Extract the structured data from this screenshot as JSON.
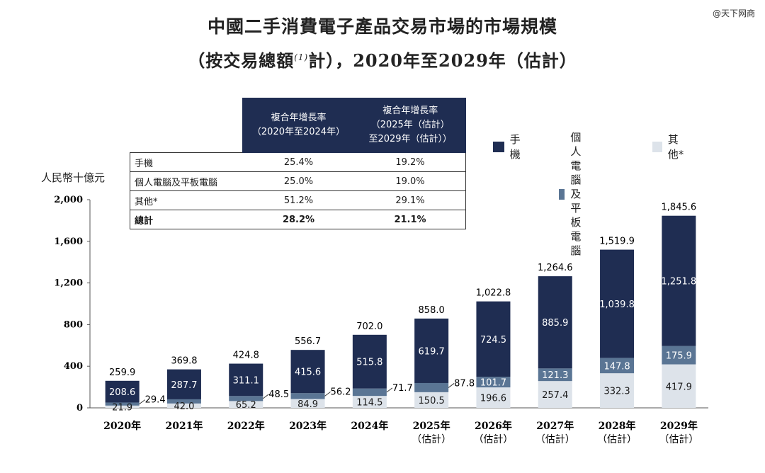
{
  "watermark": "@天下网商",
  "titles": {
    "line1": "中國二手消費電子產品交易市場的市場規模",
    "line2_pre": "（按交易總額",
    "line2_note": "(1)",
    "line2_post": "計），2020年至2029年（估計）"
  },
  "unit_label": "人民幣十億元",
  "cagr_table": {
    "header_col1": "複合年增長率\n（2020年至2024年）",
    "header_col2": "複合年增長率\n（2025年（估計）\n至2029年（估計））",
    "rows": [
      {
        "label": "手機",
        "c1": "25.4%",
        "c2": "19.2%"
      },
      {
        "label": "個人電腦及平板電腦",
        "c1": "25.0%",
        "c2": "19.0%"
      },
      {
        "label": "其他*",
        "c1": "51.2%",
        "c2": "29.1%"
      },
      {
        "label": "總計",
        "c1": "28.2%",
        "c2": "21.1%",
        "bold": true
      }
    ]
  },
  "legend": [
    "手機",
    "個人電腦\n及平板電腦",
    "其他*"
  ],
  "colors": {
    "phones": "#1f2d52",
    "pc_tablet": "#5a7594",
    "others": "#dde3ea",
    "header_bg": "#1f2d52"
  },
  "chart_data": {
    "type": "bar",
    "stacked": true,
    "categories": [
      "2020年",
      "2021年",
      "2022年",
      "2023年",
      "2024年",
      "2025年\n（估計）",
      "2026年\n（估計）",
      "2027年\n（估計）",
      "2028年\n（估計）",
      "2029年\n（估計）"
    ],
    "series": [
      {
        "name": "其他*",
        "values": [
          21.9,
          42.0,
          65.2,
          84.9,
          114.5,
          150.5,
          196.6,
          257.4,
          332.3,
          417.9
        ]
      },
      {
        "name": "個人電腦及平板電腦",
        "values": [
          29.4,
          40.1,
          48.5,
          56.2,
          71.7,
          87.8,
          101.7,
          121.3,
          147.8,
          175.9
        ]
      },
      {
        "name": "手機",
        "values": [
          208.6,
          287.7,
          311.1,
          415.6,
          515.8,
          619.7,
          724.5,
          885.9,
          1039.8,
          1251.8
        ]
      }
    ],
    "totals": [
      259.9,
      369.8,
      424.8,
      556.7,
      702.0,
      858.0,
      1022.8,
      1264.6,
      1519.9,
      1845.6
    ],
    "labels": {
      "others": [
        "21.9",
        "42.0",
        "65.2",
        "84.9",
        "114.5",
        "150.5",
        "196.6",
        "257.4",
        "332.3",
        "417.9"
      ],
      "pc": [
        "29.4",
        "",
        "48.5",
        "56.2",
        "71.7",
        "87.8",
        "101.7",
        "121.3",
        "147.8",
        "175.9"
      ],
      "phones": [
        "208.6",
        "287.7",
        "311.1",
        "415.6",
        "515.8",
        "619.7",
        "724.5",
        "885.9",
        "1,039.8",
        "1,251.8"
      ],
      "totals": [
        "259.9",
        "369.8",
        "424.8",
        "556.7",
        "702.0",
        "858.0",
        "1,022.8",
        "1,264.6",
        "1,519.9",
        "1,845.6"
      ]
    },
    "y_ticks": [
      "0",
      "400",
      "800",
      "1,200",
      "1,600",
      "2,000"
    ],
    "y_tick_values": [
      0,
      400,
      800,
      1200,
      1600,
      2000
    ],
    "ylim": [
      0,
      2000
    ],
    "legend_position": "top-right",
    "grid": false
  }
}
